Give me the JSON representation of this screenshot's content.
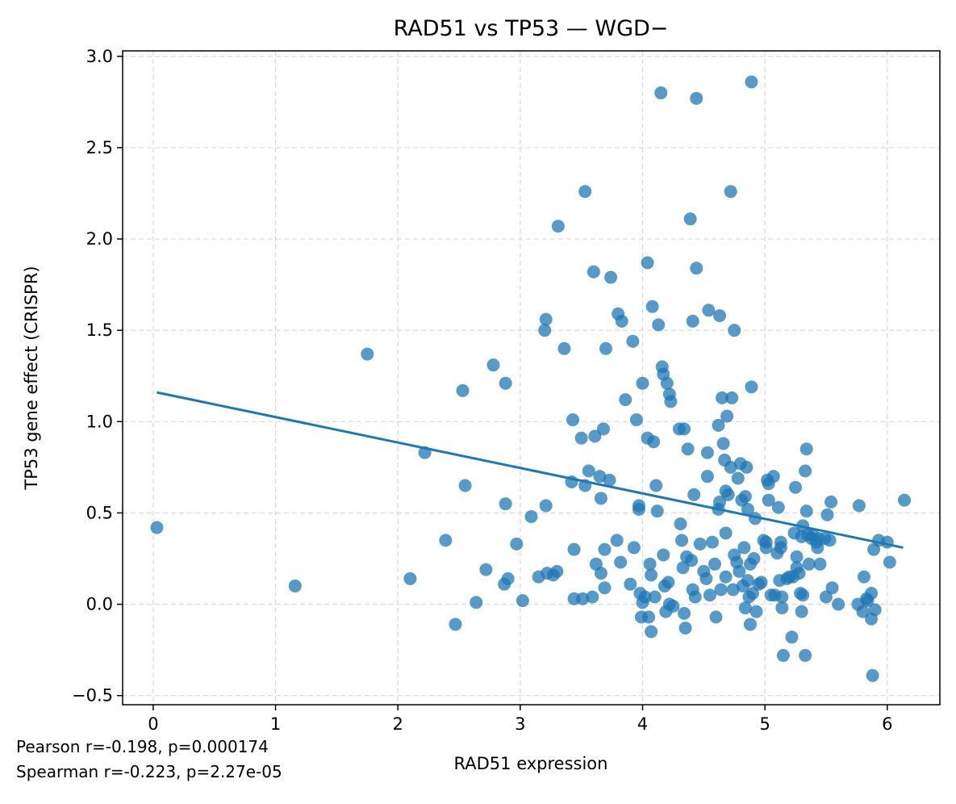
{
  "chart_data": {
    "type": "scatter",
    "title": "RAD51 vs TP53 — WGD−",
    "xlabel": "RAD51 expression",
    "ylabel": "TP53 gene effect (CRISPR)",
    "xlim": [
      -0.25,
      6.43
    ],
    "ylim": [
      -0.55,
      3.03
    ],
    "xticks": [
      0,
      1,
      2,
      3,
      4,
      5,
      6
    ],
    "xtick_labels": [
      "0",
      "1",
      "2",
      "3",
      "4",
      "5",
      "6"
    ],
    "yticks": [
      -0.5,
      0.0,
      0.5,
      1.0,
      1.5,
      2.0,
      2.5,
      3.0
    ],
    "ytick_labels": [
      "−0.5",
      "0.0",
      "0.5",
      "1.0",
      "1.5",
      "2.0",
      "2.5",
      "3.0"
    ],
    "grid": true,
    "point_color": "#1f77b4",
    "fit_line_color": "#1f77b4",
    "fit_line": {
      "x": [
        0.03,
        6.13
      ],
      "y": [
        1.16,
        0.31
      ]
    },
    "points": [
      [
        0.03,
        0.42
      ],
      [
        1.16,
        0.1
      ],
      [
        1.75,
        1.37
      ],
      [
        2.1,
        0.14
      ],
      [
        2.22,
        0.83
      ],
      [
        2.39,
        0.35
      ],
      [
        2.47,
        -0.11
      ],
      [
        2.53,
        1.17
      ],
      [
        2.55,
        0.65
      ],
      [
        2.64,
        0.01
      ],
      [
        2.72,
        0.19
      ],
      [
        2.78,
        1.31
      ],
      [
        2.87,
        0.11
      ],
      [
        2.88,
        1.21
      ],
      [
        2.88,
        0.55
      ],
      [
        2.9,
        0.14
      ],
      [
        2.97,
        0.33
      ],
      [
        3.02,
        0.02
      ],
      [
        3.09,
        0.48
      ],
      [
        3.15,
        0.15
      ],
      [
        3.2,
        1.5
      ],
      [
        3.21,
        1.56
      ],
      [
        3.21,
        0.54
      ],
      [
        3.22,
        0.17
      ],
      [
        3.27,
        0.16
      ],
      [
        3.3,
        0.18
      ],
      [
        3.31,
        2.07
      ],
      [
        3.36,
        1.4
      ],
      [
        3.42,
        0.67
      ],
      [
        3.43,
        1.01
      ],
      [
        3.44,
        0.3
      ],
      [
        3.44,
        0.03
      ],
      [
        3.5,
        0.91
      ],
      [
        3.51,
        0.03
      ],
      [
        3.53,
        0.65
      ],
      [
        3.53,
        2.26
      ],
      [
        3.56,
        0.73
      ],
      [
        3.59,
        0.04
      ],
      [
        3.6,
        1.82
      ],
      [
        3.61,
        0.92
      ],
      [
        3.62,
        0.22
      ],
      [
        3.65,
        0.7
      ],
      [
        3.66,
        0.58
      ],
      [
        3.66,
        0.17
      ],
      [
        3.68,
        0.96
      ],
      [
        3.69,
        0.09
      ],
      [
        3.69,
        0.3
      ],
      [
        3.7,
        1.4
      ],
      [
        3.73,
        0.68
      ],
      [
        3.74,
        1.79
      ],
      [
        3.79,
        0.35
      ],
      [
        3.8,
        1.59
      ],
      [
        3.82,
        0.23
      ],
      [
        3.83,
        1.55
      ],
      [
        3.86,
        1.12
      ],
      [
        3.9,
        0.11
      ],
      [
        3.92,
        1.44
      ],
      [
        3.93,
        0.31
      ],
      [
        3.95,
        1.01
      ],
      [
        3.97,
        0.52
      ],
      [
        3.97,
        0.54
      ],
      [
        3.98,
        0.06
      ],
      [
        3.99,
        -0.07
      ],
      [
        4.0,
        1.21
      ],
      [
        4.0,
        0.01
      ],
      [
        4.02,
        0.04
      ],
      [
        4.04,
        1.87
      ],
      [
        4.04,
        0.91
      ],
      [
        4.05,
        -0.07
      ],
      [
        4.06,
        0.22
      ],
      [
        4.07,
        0.16
      ],
      [
        4.07,
        -0.15
      ],
      [
        4.08,
        1.63
      ],
      [
        4.09,
        0.89
      ],
      [
        4.1,
        0.04
      ],
      [
        4.11,
        0.65
      ],
      [
        4.12,
        0.51
      ],
      [
        4.13,
        1.53
      ],
      [
        4.15,
        2.8
      ],
      [
        4.16,
        1.3
      ],
      [
        4.17,
        1.26
      ],
      [
        4.17,
        0.27
      ],
      [
        4.18,
        0.1
      ],
      [
        4.19,
        -0.04
      ],
      [
        4.2,
        1.21
      ],
      [
        4.21,
        0.12
      ],
      [
        4.22,
        1.15
      ],
      [
        4.22,
        0.0
      ],
      [
        4.23,
        1.11
      ],
      [
        4.25,
        -0.01
      ],
      [
        4.3,
        0.96
      ],
      [
        4.31,
        0.44
      ],
      [
        4.32,
        0.35
      ],
      [
        4.33,
        0.2
      ],
      [
        4.34,
        0.96
      ],
      [
        4.34,
        -0.05
      ],
      [
        4.35,
        -0.13
      ],
      [
        4.36,
        0.26
      ],
      [
        4.37,
        0.85
      ],
      [
        4.39,
        2.11
      ],
      [
        4.4,
        0.24
      ],
      [
        4.41,
        0.08
      ],
      [
        4.41,
        1.55
      ],
      [
        4.42,
        0.6
      ],
      [
        4.43,
        0.04
      ],
      [
        4.44,
        1.84
      ],
      [
        4.44,
        2.77
      ],
      [
        4.47,
        0.33
      ],
      [
        4.5,
        0.18
      ],
      [
        4.52,
        0.14
      ],
      [
        4.53,
        0.83
      ],
      [
        4.53,
        0.7
      ],
      [
        4.54,
        1.61
      ],
      [
        4.55,
        0.05
      ],
      [
        4.57,
        0.34
      ],
      [
        4.59,
        0.22
      ],
      [
        4.6,
        -0.07
      ],
      [
        4.62,
        0.98
      ],
      [
        4.62,
        0.52
      ],
      [
        4.63,
        1.58
      ],
      [
        4.63,
        0.56
      ],
      [
        4.64,
        0.08
      ],
      [
        4.65,
        1.13
      ],
      [
        4.66,
        0.88
      ],
      [
        4.67,
        0.79
      ],
      [
        4.68,
        0.62
      ],
      [
        4.68,
        0.39
      ],
      [
        4.68,
        0.15
      ],
      [
        4.69,
        1.03
      ],
      [
        4.7,
        0.6
      ],
      [
        4.72,
        0.75
      ],
      [
        4.72,
        2.26
      ],
      [
        4.73,
        1.13
      ],
      [
        4.74,
        0.08
      ],
      [
        4.75,
        1.5
      ],
      [
        4.75,
        0.27
      ],
      [
        4.77,
        0.23
      ],
      [
        4.78,
        0.69
      ],
      [
        4.79,
        0.18
      ],
      [
        4.8,
        0.77
      ],
      [
        4.81,
        0.57
      ],
      [
        4.82,
        0.1
      ],
      [
        4.83,
        0.31
      ],
      [
        4.84,
        0.59
      ],
      [
        4.84,
        -0.02
      ],
      [
        4.85,
        0.75
      ],
      [
        4.86,
        0.13
      ],
      [
        4.86,
        0.52
      ],
      [
        4.87,
        0.04
      ],
      [
        4.88,
        0.22
      ],
      [
        4.88,
        -0.11
      ],
      [
        4.89,
        2.86
      ],
      [
        4.89,
        1.19
      ],
      [
        4.9,
        0.06
      ],
      [
        4.91,
        0.25
      ],
      [
        4.92,
        0.47
      ],
      [
        4.93,
        -0.04
      ],
      [
        4.95,
        0.11
      ],
      [
        4.97,
        0.12
      ],
      [
        4.99,
        0.35
      ],
      [
        5.01,
        0.34
      ],
      [
        5.01,
        0.31
      ],
      [
        5.02,
        0.68
      ],
      [
        5.03,
        0.57
      ],
      [
        5.03,
        0.66
      ],
      [
        5.05,
        0.05
      ],
      [
        5.07,
        0.7
      ],
      [
        5.08,
        0.05
      ],
      [
        5.1,
        0.28
      ],
      [
        5.11,
        0.53
      ],
      [
        5.12,
        0.13
      ],
      [
        5.13,
        0.34
      ],
      [
        5.13,
        0.31
      ],
      [
        5.14,
        -0.02
      ],
      [
        5.14,
        0.04
      ],
      [
        5.15,
        -0.28
      ],
      [
        5.18,
        0.14
      ],
      [
        5.2,
        0.15
      ],
      [
        5.22,
        -0.18
      ],
      [
        5.23,
        0.15
      ],
      [
        5.24,
        0.39
      ],
      [
        5.25,
        0.64
      ],
      [
        5.26,
        0.26
      ],
      [
        5.26,
        0.2
      ],
      [
        5.28,
        0.17
      ],
      [
        5.29,
        0.06
      ],
      [
        5.3,
        -0.04
      ],
      [
        5.3,
        0.37
      ],
      [
        5.31,
        0.05
      ],
      [
        5.31,
        0.43
      ],
      [
        5.33,
        0.73
      ],
      [
        5.33,
        -0.28
      ],
      [
        5.34,
        0.85
      ],
      [
        5.34,
        0.51
      ],
      [
        5.35,
        0.38
      ],
      [
        5.36,
        0.22
      ],
      [
        5.38,
        0.36
      ],
      [
        5.39,
        0.38
      ],
      [
        5.42,
        0.34
      ],
      [
        5.43,
        0.31
      ],
      [
        5.44,
        0.36
      ],
      [
        5.45,
        0.22
      ],
      [
        5.49,
        0.36
      ],
      [
        5.5,
        0.04
      ],
      [
        5.51,
        0.49
      ],
      [
        5.53,
        0.35
      ],
      [
        5.54,
        0.56
      ],
      [
        5.55,
        0.09
      ],
      [
        5.6,
        0.0
      ],
      [
        5.76,
        0.0
      ],
      [
        5.77,
        0.54
      ],
      [
        5.8,
        -0.04
      ],
      [
        5.81,
        0.15
      ],
      [
        5.83,
        0.03
      ],
      [
        5.84,
        0.02
      ],
      [
        5.87,
        -0.08
      ],
      [
        5.87,
        0.06
      ],
      [
        5.88,
        -0.39
      ],
      [
        5.89,
        0.3
      ],
      [
        5.9,
        -0.03
      ],
      [
        5.93,
        0.35
      ],
      [
        6.0,
        0.34
      ],
      [
        6.02,
        0.23
      ],
      [
        6.14,
        0.57
      ]
    ]
  },
  "stats": {
    "pearson": "Pearson r=-0.198, p=0.000174",
    "spearman": "Spearman r=-0.223, p=2.27e-05"
  }
}
